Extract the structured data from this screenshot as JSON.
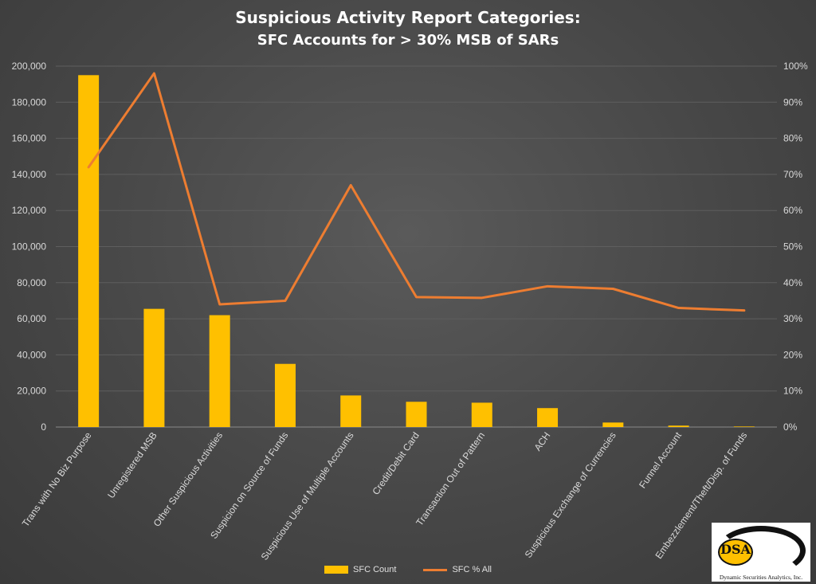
{
  "chart_data": {
    "type": "bar",
    "title": "Suspicious Activity Report Categories:",
    "subtitle": "SFC Accounts for > 30% MSB of SARs",
    "categories": [
      "Trans with No Biz Purpose",
      "Unregistered MSB",
      "Other Suspicious Activities",
      "Suspicion on Source of Funds",
      "Suspicious Use of Multiple Accounts",
      "Credit/Debit Card",
      "Transaction Out of Pattern",
      "ACH",
      "Suspicious Exchange of Currencies",
      "Funnel Account",
      "Embezzlement/Theft/Disp. of Funds"
    ],
    "series": [
      {
        "name": "SFC Count",
        "type": "bar",
        "axis": "left",
        "color": "#ffc000",
        "values": [
          195000,
          65500,
          62000,
          35000,
          17500,
          14000,
          13500,
          10500,
          2500,
          800,
          300
        ]
      },
      {
        "name": "SFC % All",
        "type": "line",
        "axis": "right",
        "color": "#ed7d31",
        "values": [
          0.72,
          0.98,
          0.34,
          0.35,
          0.67,
          0.36,
          0.358,
          0.39,
          0.383,
          0.33,
          0.323
        ]
      }
    ],
    "ylim": [
      0,
      200000
    ],
    "y_ticks": [
      "0",
      "20,000",
      "40,000",
      "60,000",
      "80,000",
      "100,000",
      "120,000",
      "140,000",
      "160,000",
      "180,000",
      "200,000"
    ],
    "y2lim": [
      0,
      1
    ],
    "y2_ticks": [
      "0%",
      "10%",
      "20%",
      "30%",
      "40%",
      "50%",
      "60%",
      "70%",
      "80%",
      "90%",
      "100%"
    ],
    "grid": true,
    "legend": "bottom"
  },
  "logo": {
    "mark": "DSA",
    "name": "Dynamic Securities Analytics, Inc."
  }
}
